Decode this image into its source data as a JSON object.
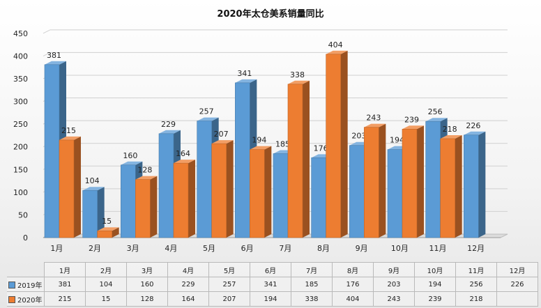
{
  "chart_data": {
    "type": "bar",
    "title": "2020年太仓美系销量同比",
    "categories": [
      "1月",
      "2月",
      "3月",
      "4月",
      "5月",
      "6月",
      "7月",
      "8月",
      "9月",
      "10月",
      "11月",
      "12月"
    ],
    "series": [
      {
        "name": "2019年",
        "color": "#5b9bd5",
        "values": [
          381,
          104,
          160,
          229,
          257,
          341,
          185,
          176,
          203,
          194,
          256,
          226
        ]
      },
      {
        "name": "2020年",
        "color": "#ed7d31",
        "values": [
          215,
          15,
          128,
          164,
          207,
          194,
          338,
          404,
          243,
          239,
          218,
          null
        ]
      }
    ],
    "ylim": [
      0,
      450
    ],
    "yticks": [
      0,
      50,
      100,
      150,
      200,
      250,
      300,
      350,
      400,
      450
    ],
    "grid": true,
    "legend": "data-table-bottom"
  }
}
